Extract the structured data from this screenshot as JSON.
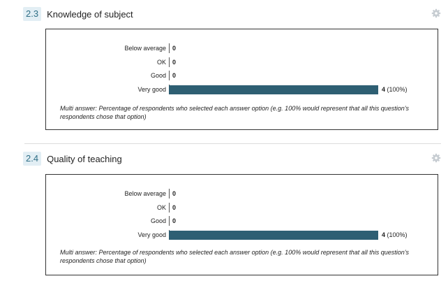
{
  "questions": [
    {
      "number": "2.3",
      "title": "Knowledge of subject",
      "settings_icon": "gear-icon",
      "note": "Multi answer: Percentage of respondents who selected each answer option (e.g. 100% would represent that all this question's respondents chose that option)"
    },
    {
      "number": "2.4",
      "title": "Quality of teaching",
      "settings_icon": "gear-icon",
      "note": "Multi answer: Percentage of respondents who selected each answer option (e.g. 100% would represent that all this question's respondents chose that option)"
    }
  ],
  "colors": {
    "bar": "#2e5f73",
    "number_badge_bg": "#e2eef4",
    "number_badge_text": "#2f6f86"
  },
  "chart_data": [
    {
      "type": "bar",
      "orientation": "horizontal",
      "title": "Knowledge of subject",
      "categories": [
        "Below average",
        "OK",
        "Good",
        "Very good"
      ],
      "values": [
        0,
        0,
        0,
        4
      ],
      "percents": [
        "",
        "",
        "",
        "(100%)"
      ],
      "xlim": [
        0,
        4
      ]
    },
    {
      "type": "bar",
      "orientation": "horizontal",
      "title": "Quality of teaching",
      "categories": [
        "Below average",
        "OK",
        "Good",
        "Very good"
      ],
      "values": [
        0,
        0,
        0,
        4
      ],
      "percents": [
        "",
        "",
        "",
        "(100%)"
      ],
      "xlim": [
        0,
        4
      ]
    }
  ]
}
